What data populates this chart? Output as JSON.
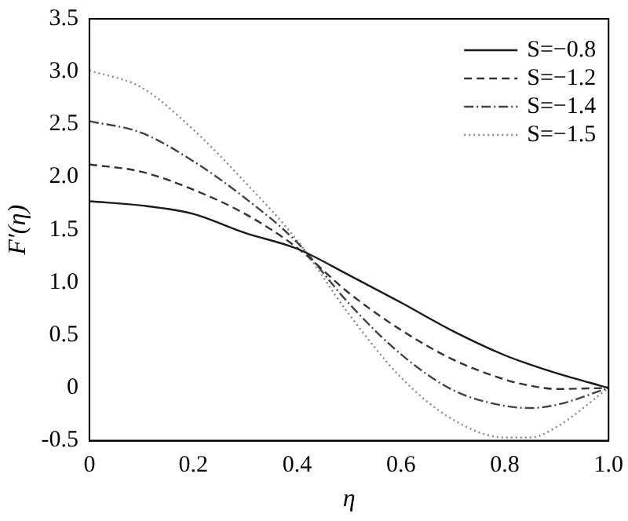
{
  "chart_data": {
    "type": "line",
    "xlabel": "η",
    "ylabel": "F′(η)",
    "x": [
      0,
      0.1,
      0.2,
      0.3,
      0.4,
      0.5,
      0.6,
      0.7,
      0.8,
      0.85,
      0.9,
      1.0
    ],
    "series": [
      {
        "name": "S=−0.8",
        "color": "#1a1a1a",
        "line_style": "solid",
        "values": [
          1.77,
          1.73,
          1.65,
          1.47,
          1.32,
          1.07,
          0.81,
          0.54,
          0.31,
          0.22,
          0.14,
          0
        ]
      },
      {
        "name": "S=−1.2",
        "color": "#333333",
        "line_style": "dashed",
        "values": [
          2.12,
          2.05,
          1.88,
          1.65,
          1.33,
          0.9,
          0.55,
          0.27,
          0.08,
          0.02,
          -0.01,
          0
        ]
      },
      {
        "name": "S=−1.4",
        "color": "#444444",
        "line_style": "dashdot",
        "values": [
          2.53,
          2.42,
          2.15,
          1.8,
          1.38,
          0.8,
          0.32,
          -0.02,
          -0.17,
          -0.19,
          -0.16,
          0
        ]
      },
      {
        "name": "S=−1.5",
        "color": "#888888",
        "line_style": "dotted",
        "values": [
          3.01,
          2.85,
          2.45,
          1.95,
          1.4,
          0.7,
          0.1,
          -0.3,
          -0.47,
          -0.47,
          -0.37,
          0
        ]
      }
    ],
    "xlim": [
      0,
      1
    ],
    "xticks": [
      0,
      0.2,
      0.4,
      0.6,
      0.8,
      {
        "value": 1,
        "label": "1.0"
      }
    ],
    "ylim": [
      -0.5,
      3.5
    ],
    "yticks": [
      -0.5,
      0,
      0.5,
      {
        "value": 1,
        "label": "1.0"
      },
      1.5,
      {
        "value": 2,
        "label": "2.0"
      },
      2.5,
      {
        "value": 3,
        "label": "3.0"
      },
      3.5
    ],
    "legend": "top right",
    "marker": "none",
    "grid": false
  }
}
